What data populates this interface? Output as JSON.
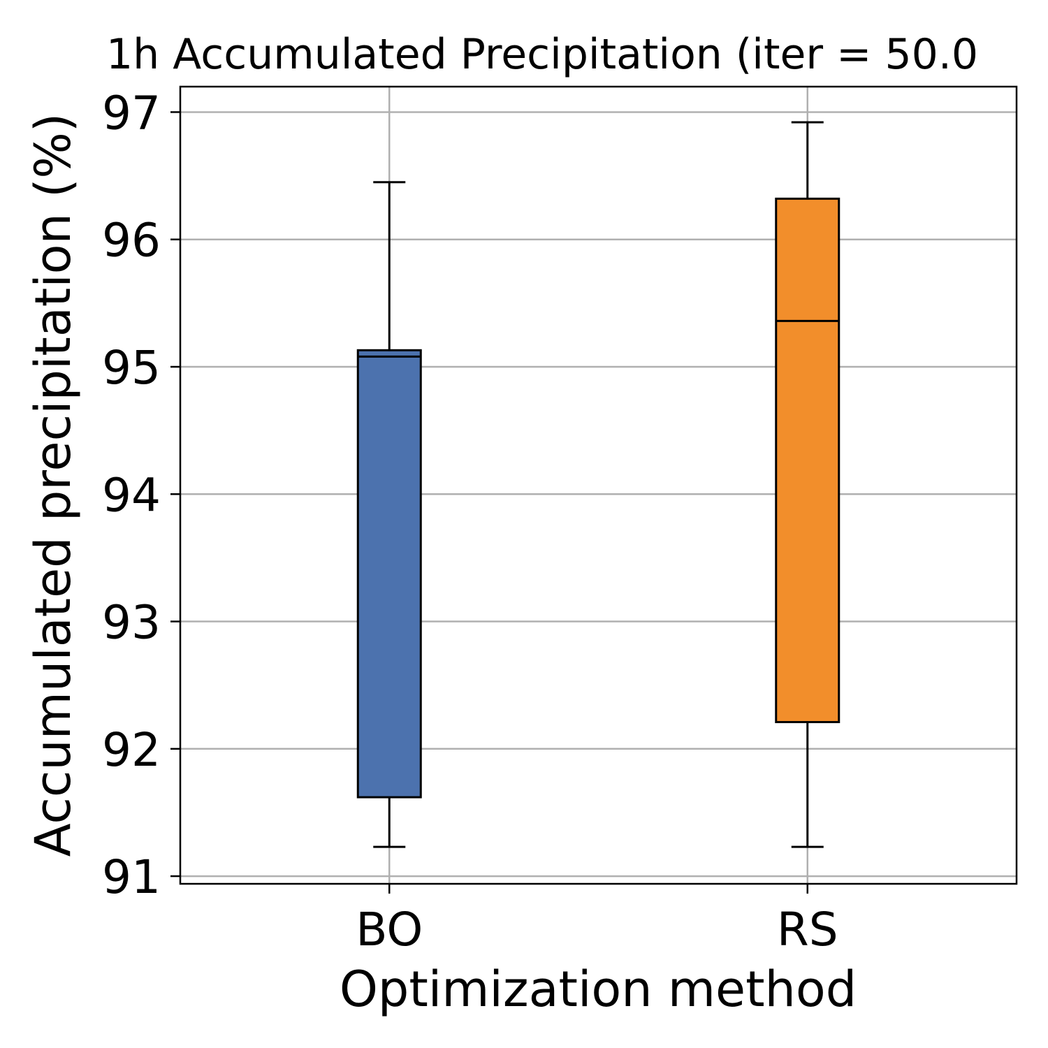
{
  "chart_data": {
    "type": "box",
    "title": "1h Accumulated Precipitation (iter = 50.0",
    "xlabel": "Optimization method",
    "ylabel": "Accumulated precipitation (%)",
    "categories": [
      "BO",
      "RS"
    ],
    "yticks": [
      "91",
      "92",
      "93",
      "94",
      "95",
      "96",
      "97"
    ],
    "ylim": [
      90.94,
      97.2
    ],
    "grid": true,
    "series": [
      {
        "category": "BO",
        "color": "#4c72ae",
        "whisker_low": 91.23,
        "q1": 91.62,
        "median": 95.08,
        "q3": 95.13,
        "whisker_high": 96.45
      },
      {
        "category": "RS",
        "color": "#f28e2b",
        "whisker_low": 91.23,
        "q1": 92.21,
        "median": 95.36,
        "q3": 96.32,
        "whisker_high": 96.92
      }
    ]
  }
}
